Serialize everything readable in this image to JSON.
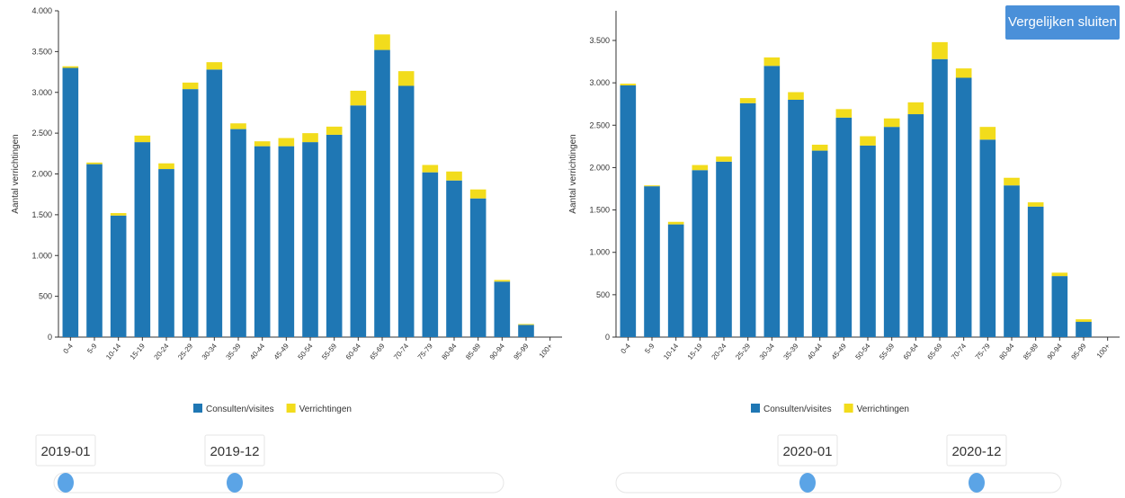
{
  "chart_data": [
    {
      "type": "stacked_bar",
      "y_label": "Aantal verrichtingen",
      "categories": [
        "0-4",
        "5-9",
        "10-14",
        "15-19",
        "20-24",
        "25-29",
        "30-34",
        "35-39",
        "40-44",
        "45-49",
        "50-54",
        "55-59",
        "60-64",
        "65-69",
        "70-74",
        "75-79",
        "80-84",
        "85-89",
        "90-94",
        "95-99",
        "100+"
      ],
      "series": [
        {
          "name": "Consulten/visites",
          "color": "#1f77b4",
          "values": [
            3300,
            2120,
            1490,
            2390,
            2060,
            3040,
            3280,
            2550,
            2340,
            2340,
            2390,
            2480,
            2840,
            3520,
            3080,
            2020,
            1920,
            1700,
            680,
            150,
            0
          ]
        },
        {
          "name": "Verrichtingen",
          "color": "#f2dc1c",
          "values": [
            20,
            20,
            30,
            80,
            70,
            80,
            90,
            70,
            60,
            100,
            110,
            100,
            180,
            190,
            180,
            90,
            110,
            110,
            20,
            10,
            0
          ]
        }
      ],
      "ylim": [
        0,
        4000
      ],
      "yticks": [
        0,
        500,
        {
          "value": 1000,
          "label": "1.000"
        },
        {
          "value": 1500,
          "label": "1.500"
        },
        {
          "value": 2000,
          "label": "2.000"
        },
        {
          "value": 2500,
          "label": "2.500"
        },
        {
          "value": 3000,
          "label": "3.000"
        },
        {
          "value": 3500,
          "label": "3.500"
        },
        {
          "value": 4000,
          "label": "4.000"
        }
      ],
      "slider": {
        "start": "2019-01",
        "end": "2019-12"
      }
    },
    {
      "type": "stacked_bar",
      "y_label": "Aantal verrichtingen",
      "categories": [
        "0-4",
        "5-9",
        "10-14",
        "15-19",
        "20-24",
        "25-29",
        "30-34",
        "35-39",
        "40-44",
        "45-49",
        "50-54",
        "55-59",
        "60-64",
        "65-69",
        "70-74",
        "75-79",
        "80-84",
        "85-89",
        "90-94",
        "95-99",
        "100+"
      ],
      "series": [
        {
          "name": "Consulten/visites",
          "color": "#1f77b4",
          "values": [
            2970,
            1780,
            1330,
            1970,
            2070,
            2760,
            3200,
            2800,
            2200,
            2590,
            2260,
            2480,
            2630,
            3280,
            3060,
            2330,
            1790,
            1540,
            720,
            180,
            0
          ]
        },
        {
          "name": "Verrichtingen",
          "color": "#f2dc1c",
          "values": [
            20,
            10,
            30,
            60,
            60,
            60,
            100,
            90,
            70,
            100,
            110,
            100,
            140,
            200,
            110,
            150,
            90,
            50,
            40,
            30,
            0
          ]
        }
      ],
      "ylim": [
        0,
        3850
      ],
      "yticks": [
        0,
        500,
        {
          "value": 1000,
          "label": "1.000"
        },
        {
          "value": 1500,
          "label": "1.500"
        },
        {
          "value": 2000,
          "label": "2.000"
        },
        {
          "value": 2500,
          "label": "2.500"
        },
        {
          "value": 3000,
          "label": "3.000"
        },
        {
          "value": 3500,
          "label": "3.500"
        }
      ],
      "slider": {
        "start": "2020-01",
        "end": "2020-12"
      }
    }
  ],
  "button": "Vergelijken sluiten"
}
